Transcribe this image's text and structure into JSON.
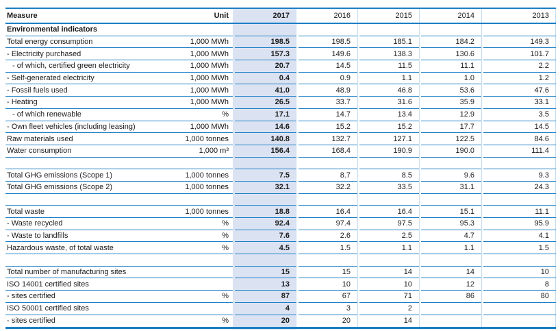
{
  "table": {
    "columns": [
      "Measure",
      "Unit",
      "2017",
      "2016",
      "2015",
      "2014",
      "2013"
    ],
    "highlighted_column": "2017",
    "rows": [
      {
        "type": "section",
        "measure": "Environmental indicators"
      },
      {
        "type": "data",
        "measure": "Total energy consumption",
        "indent": 0,
        "unit": "1,000 MWh",
        "values": [
          "198.5",
          "198.5",
          "185.1",
          "184.2",
          "149.3"
        ]
      },
      {
        "type": "data",
        "measure": "- Electricity purchased",
        "indent": 0,
        "unit": "1,000 MWh",
        "values": [
          "157.3",
          "149.6",
          "138.3",
          "130.6",
          "101.7"
        ]
      },
      {
        "type": "data",
        "measure": "- of which, certified green electricity",
        "indent": 1,
        "unit": "1,000 MWh",
        "values": [
          "20.7",
          "14.5",
          "11.5",
          "11.1",
          "2.2"
        ]
      },
      {
        "type": "data",
        "measure": "- Self-generated electricity",
        "indent": 0,
        "unit": "1,000 MWh",
        "values": [
          "0.4",
          "0.9",
          "1.1",
          "1.0",
          "1.2"
        ]
      },
      {
        "type": "data",
        "measure": "- Fossil fuels used",
        "indent": 0,
        "unit": "1,000 MWh",
        "values": [
          "41.0",
          "48.9",
          "46.8",
          "53.6",
          "47.6"
        ]
      },
      {
        "type": "data",
        "measure": "- Heating",
        "indent": 0,
        "unit": "1,000 MWh",
        "values": [
          "26.5",
          "33.7",
          "31.6",
          "35.9",
          "33.1"
        ]
      },
      {
        "type": "data",
        "measure": "- of which renewable",
        "indent": 1,
        "unit": "%",
        "values": [
          "17.1",
          "14.7",
          "13.4",
          "12.9",
          "3.5"
        ]
      },
      {
        "type": "data",
        "measure": "- Own fleet vehicles (including leasing)",
        "indent": 0,
        "unit": "1,000 MWh",
        "values": [
          "14.6",
          "15.2",
          "15.2",
          "17.7",
          "14.5"
        ]
      },
      {
        "type": "data",
        "measure": "Raw materials used",
        "indent": 0,
        "unit": "1,000 tonnes",
        "values": [
          "140.8",
          "132.7",
          "127.1",
          "122.5",
          "84.6"
        ]
      },
      {
        "type": "data",
        "measure": "Water consumption",
        "indent": 0,
        "unit": "1,000 m³",
        "values": [
          "156.4",
          "168.4",
          "190.9",
          "190.0",
          "111.4"
        ]
      },
      {
        "type": "spacer"
      },
      {
        "type": "data",
        "measure": "Total GHG emissions (Scope 1)",
        "indent": 0,
        "unit": "1,000 tonnes",
        "values": [
          "7.5",
          "8.7",
          "8.5",
          "9.6",
          "9.3"
        ]
      },
      {
        "type": "data",
        "measure": "Total GHG emissions (Scope 2)",
        "indent": 0,
        "unit": "1,000 tonnes",
        "values": [
          "32.1",
          "32.2",
          "33.5",
          "31.1",
          "24.3"
        ]
      },
      {
        "type": "spacer"
      },
      {
        "type": "data",
        "measure": "Total waste",
        "indent": 0,
        "unit": "1,000 tonnes",
        "values": [
          "18.8",
          "16.4",
          "16.4",
          "15.1",
          "11.1"
        ]
      },
      {
        "type": "data",
        "measure": "- Waste recycled",
        "indent": 0,
        "unit": "%",
        "values": [
          "92.4",
          "97.4",
          "97.5",
          "95.3",
          "95.9"
        ]
      },
      {
        "type": "data",
        "measure": "- Waste to landfills",
        "indent": 0,
        "unit": "%",
        "values": [
          "7.6",
          "2.6",
          "2.5",
          "4.7",
          "4.1"
        ]
      },
      {
        "type": "data",
        "measure": "Hazardous waste, of total waste",
        "indent": 0,
        "unit": "%",
        "values": [
          "4.5",
          "1.5",
          "1.1",
          "1.1",
          "1.5"
        ]
      },
      {
        "type": "spacer"
      },
      {
        "type": "data",
        "measure": "Total number of manufacturing sites",
        "indent": 0,
        "unit": "",
        "values": [
          "15",
          "15",
          "14",
          "14",
          "10"
        ]
      },
      {
        "type": "data",
        "measure": "ISO 14001 certified sites",
        "indent": 0,
        "unit": "",
        "values": [
          "13",
          "10",
          "10",
          "12",
          "8"
        ]
      },
      {
        "type": "data",
        "measure": "- sites certified",
        "indent": 0,
        "unit": "%",
        "values": [
          "87",
          "67",
          "71",
          "86",
          "80"
        ]
      },
      {
        "type": "data",
        "measure": "ISO 50001 certified sites",
        "indent": 0,
        "unit": "",
        "values": [
          "4",
          "3",
          "2",
          "",
          ""
        ]
      },
      {
        "type": "data",
        "measure": "- sites certified",
        "indent": 0,
        "unit": "%",
        "values": [
          "20",
          "20",
          "14",
          "",
          ""
        ]
      }
    ]
  },
  "colors": {
    "rule_blue": "#1b7ec5",
    "grid_light_blue": "#c6ddf0",
    "highlight_blue": "#dbe3f3",
    "text": "#1a1a1a"
  }
}
